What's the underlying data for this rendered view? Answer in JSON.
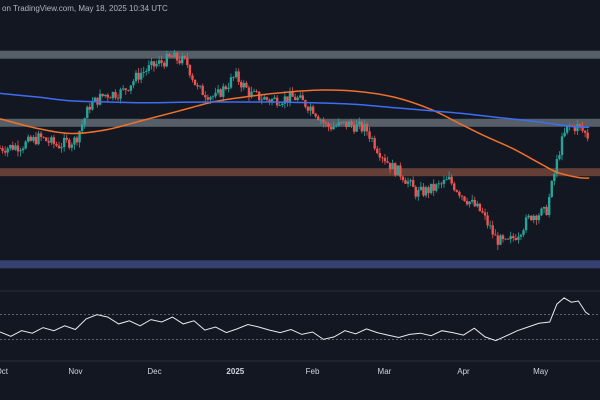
{
  "header": {
    "attribution": "on TradingView.com, May 18, 2025 10:34 UTC"
  },
  "colors": {
    "background": "#131722",
    "candle_up": "#26a69a",
    "candle_down": "#ef5350",
    "ma_fast": "#f0702c",
    "ma_slow": "#3d6df2",
    "resistance_zone": "#9aa7ad",
    "mid_zone": "#a8614a",
    "support_zone": "#5c6bc0",
    "rsi_line": "#e9eaee"
  },
  "chart_data": {
    "type": "candlestick",
    "title": "",
    "xlabel": "",
    "ylabel": "",
    "x_ticks": [
      "Oct",
      "Nov",
      "Dec",
      "2025",
      "Feb",
      "Mar",
      "Apr",
      "May"
    ],
    "x_ticks_bold": [
      "2025"
    ],
    "x_tick_positions_weeks": [
      0.1,
      4.2,
      8.6,
      13.1,
      17.4,
      21.4,
      25.8,
      30.1
    ],
    "x_range_weeks": [
      0,
      33.4
    ],
    "y_range_price_relative": [
      0.0,
      1.0
    ],
    "zones": [
      {
        "label": "",
        "y_from": 0.855,
        "y_to": 0.885,
        "kind": "resistance"
      },
      {
        "label": "",
        "y_from": 0.6,
        "y_to": 0.63,
        "kind": "resistance"
      },
      {
        "label": "",
        "y_from": 0.415,
        "y_to": 0.445,
        "kind": "mid"
      },
      {
        "label": "",
        "y_from": 0.07,
        "y_to": 0.1,
        "kind": "support"
      }
    ],
    "price_path": [
      [
        0,
        0.52
      ],
      [
        1.2,
        0.53
      ],
      [
        2.2,
        0.56
      ],
      [
        3.2,
        0.53
      ],
      [
        4.2,
        0.55
      ],
      [
        5.0,
        0.68
      ],
      [
        5.8,
        0.72
      ],
      [
        6.8,
        0.73
      ],
      [
        7.8,
        0.8
      ],
      [
        8.6,
        0.83
      ],
      [
        9.6,
        0.86
      ],
      [
        10.4,
        0.84
      ],
      [
        11.0,
        0.74
      ],
      [
        12.0,
        0.71
      ],
      [
        13.1,
        0.79
      ],
      [
        14.0,
        0.72
      ],
      [
        15.0,
        0.7
      ],
      [
        16.4,
        0.71
      ],
      [
        17.4,
        0.67
      ],
      [
        18.2,
        0.6
      ],
      [
        19.4,
        0.61
      ],
      [
        20.4,
        0.59
      ],
      [
        21.0,
        0.52
      ],
      [
        21.8,
        0.45
      ],
      [
        22.4,
        0.42
      ],
      [
        23.2,
        0.35
      ],
      [
        24.2,
        0.37
      ],
      [
        25.0,
        0.4
      ],
      [
        25.8,
        0.34
      ],
      [
        26.8,
        0.28
      ],
      [
        27.6,
        0.18
      ],
      [
        28.2,
        0.16
      ],
      [
        28.8,
        0.2
      ],
      [
        29.6,
        0.27
      ],
      [
        30.4,
        0.28
      ],
      [
        31.2,
        0.53
      ],
      [
        31.6,
        0.6
      ],
      [
        32.2,
        0.6
      ],
      [
        32.8,
        0.56
      ]
    ],
    "series": [
      {
        "name": "",
        "role": "ma_fast",
        "points": [
          [
            0,
            0.63
          ],
          [
            2.0,
            0.595
          ],
          [
            4.0,
            0.575
          ],
          [
            6.0,
            0.59
          ],
          [
            8.0,
            0.625
          ],
          [
            10.0,
            0.66
          ],
          [
            12.0,
            0.695
          ],
          [
            14.0,
            0.715
          ],
          [
            16.0,
            0.73
          ],
          [
            18.0,
            0.738
          ],
          [
            20.0,
            0.732
          ],
          [
            22.0,
            0.71
          ],
          [
            24.0,
            0.665
          ],
          [
            25.5,
            0.615
          ],
          [
            27.0,
            0.565
          ],
          [
            28.5,
            0.52
          ],
          [
            30.0,
            0.465
          ],
          [
            31.0,
            0.43
          ],
          [
            32.2,
            0.41
          ],
          [
            32.8,
            0.408
          ]
        ]
      },
      {
        "name": "",
        "role": "ma_slow",
        "points": [
          [
            0,
            0.725
          ],
          [
            2.0,
            0.712
          ],
          [
            4.0,
            0.697
          ],
          [
            6.0,
            0.693
          ],
          [
            8.0,
            0.69
          ],
          [
            10.0,
            0.692
          ],
          [
            12.0,
            0.693
          ],
          [
            14.0,
            0.693
          ],
          [
            16.0,
            0.692
          ],
          [
            18.0,
            0.689
          ],
          [
            20.0,
            0.683
          ],
          [
            22.0,
            0.671
          ],
          [
            24.0,
            0.66
          ],
          [
            26.0,
            0.648
          ],
          [
            28.0,
            0.633
          ],
          [
            30.0,
            0.618
          ],
          [
            32.0,
            0.6
          ],
          [
            32.8,
            0.598
          ]
        ]
      }
    ],
    "rsi": {
      "y_range": [
        0,
        100
      ],
      "reference_lines": [
        70,
        30
      ],
      "values": [
        [
          0,
          42
        ],
        [
          0.6,
          35
        ],
        [
          1.2,
          44
        ],
        [
          1.8,
          40
        ],
        [
          2.4,
          49
        ],
        [
          3.0,
          44
        ],
        [
          3.6,
          52
        ],
        [
          4.2,
          46
        ],
        [
          4.8,
          63
        ],
        [
          5.4,
          70
        ],
        [
          6.0,
          66
        ],
        [
          6.6,
          55
        ],
        [
          7.2,
          60
        ],
        [
          7.8,
          52
        ],
        [
          8.4,
          62
        ],
        [
          9.0,
          58
        ],
        [
          9.6,
          66
        ],
        [
          10.2,
          55
        ],
        [
          10.8,
          60
        ],
        [
          11.4,
          45
        ],
        [
          12.0,
          50
        ],
        [
          12.6,
          41
        ],
        [
          13.2,
          47
        ],
        [
          13.8,
          54
        ],
        [
          14.4,
          50
        ],
        [
          15.0,
          45
        ],
        [
          15.6,
          41
        ],
        [
          16.2,
          46
        ],
        [
          16.8,
          38
        ],
        [
          17.4,
          42
        ],
        [
          18.0,
          30
        ],
        [
          18.6,
          34
        ],
        [
          19.2,
          44
        ],
        [
          19.8,
          39
        ],
        [
          20.4,
          47
        ],
        [
          21.0,
          41
        ],
        [
          21.6,
          37
        ],
        [
          22.2,
          33
        ],
        [
          22.8,
          38
        ],
        [
          23.4,
          40
        ],
        [
          24.0,
          36
        ],
        [
          24.6,
          44
        ],
        [
          25.2,
          41
        ],
        [
          25.8,
          37
        ],
        [
          26.4,
          48
        ],
        [
          27.0,
          34
        ],
        [
          27.6,
          28
        ],
        [
          28.2,
          36
        ],
        [
          28.8,
          44
        ],
        [
          29.4,
          50
        ],
        [
          30.0,
          56
        ],
        [
          30.6,
          58
        ],
        [
          31.0,
          87
        ],
        [
          31.4,
          97
        ],
        [
          31.8,
          90
        ],
        [
          32.2,
          92
        ],
        [
          32.6,
          74
        ],
        [
          32.8,
          70
        ]
      ]
    }
  }
}
